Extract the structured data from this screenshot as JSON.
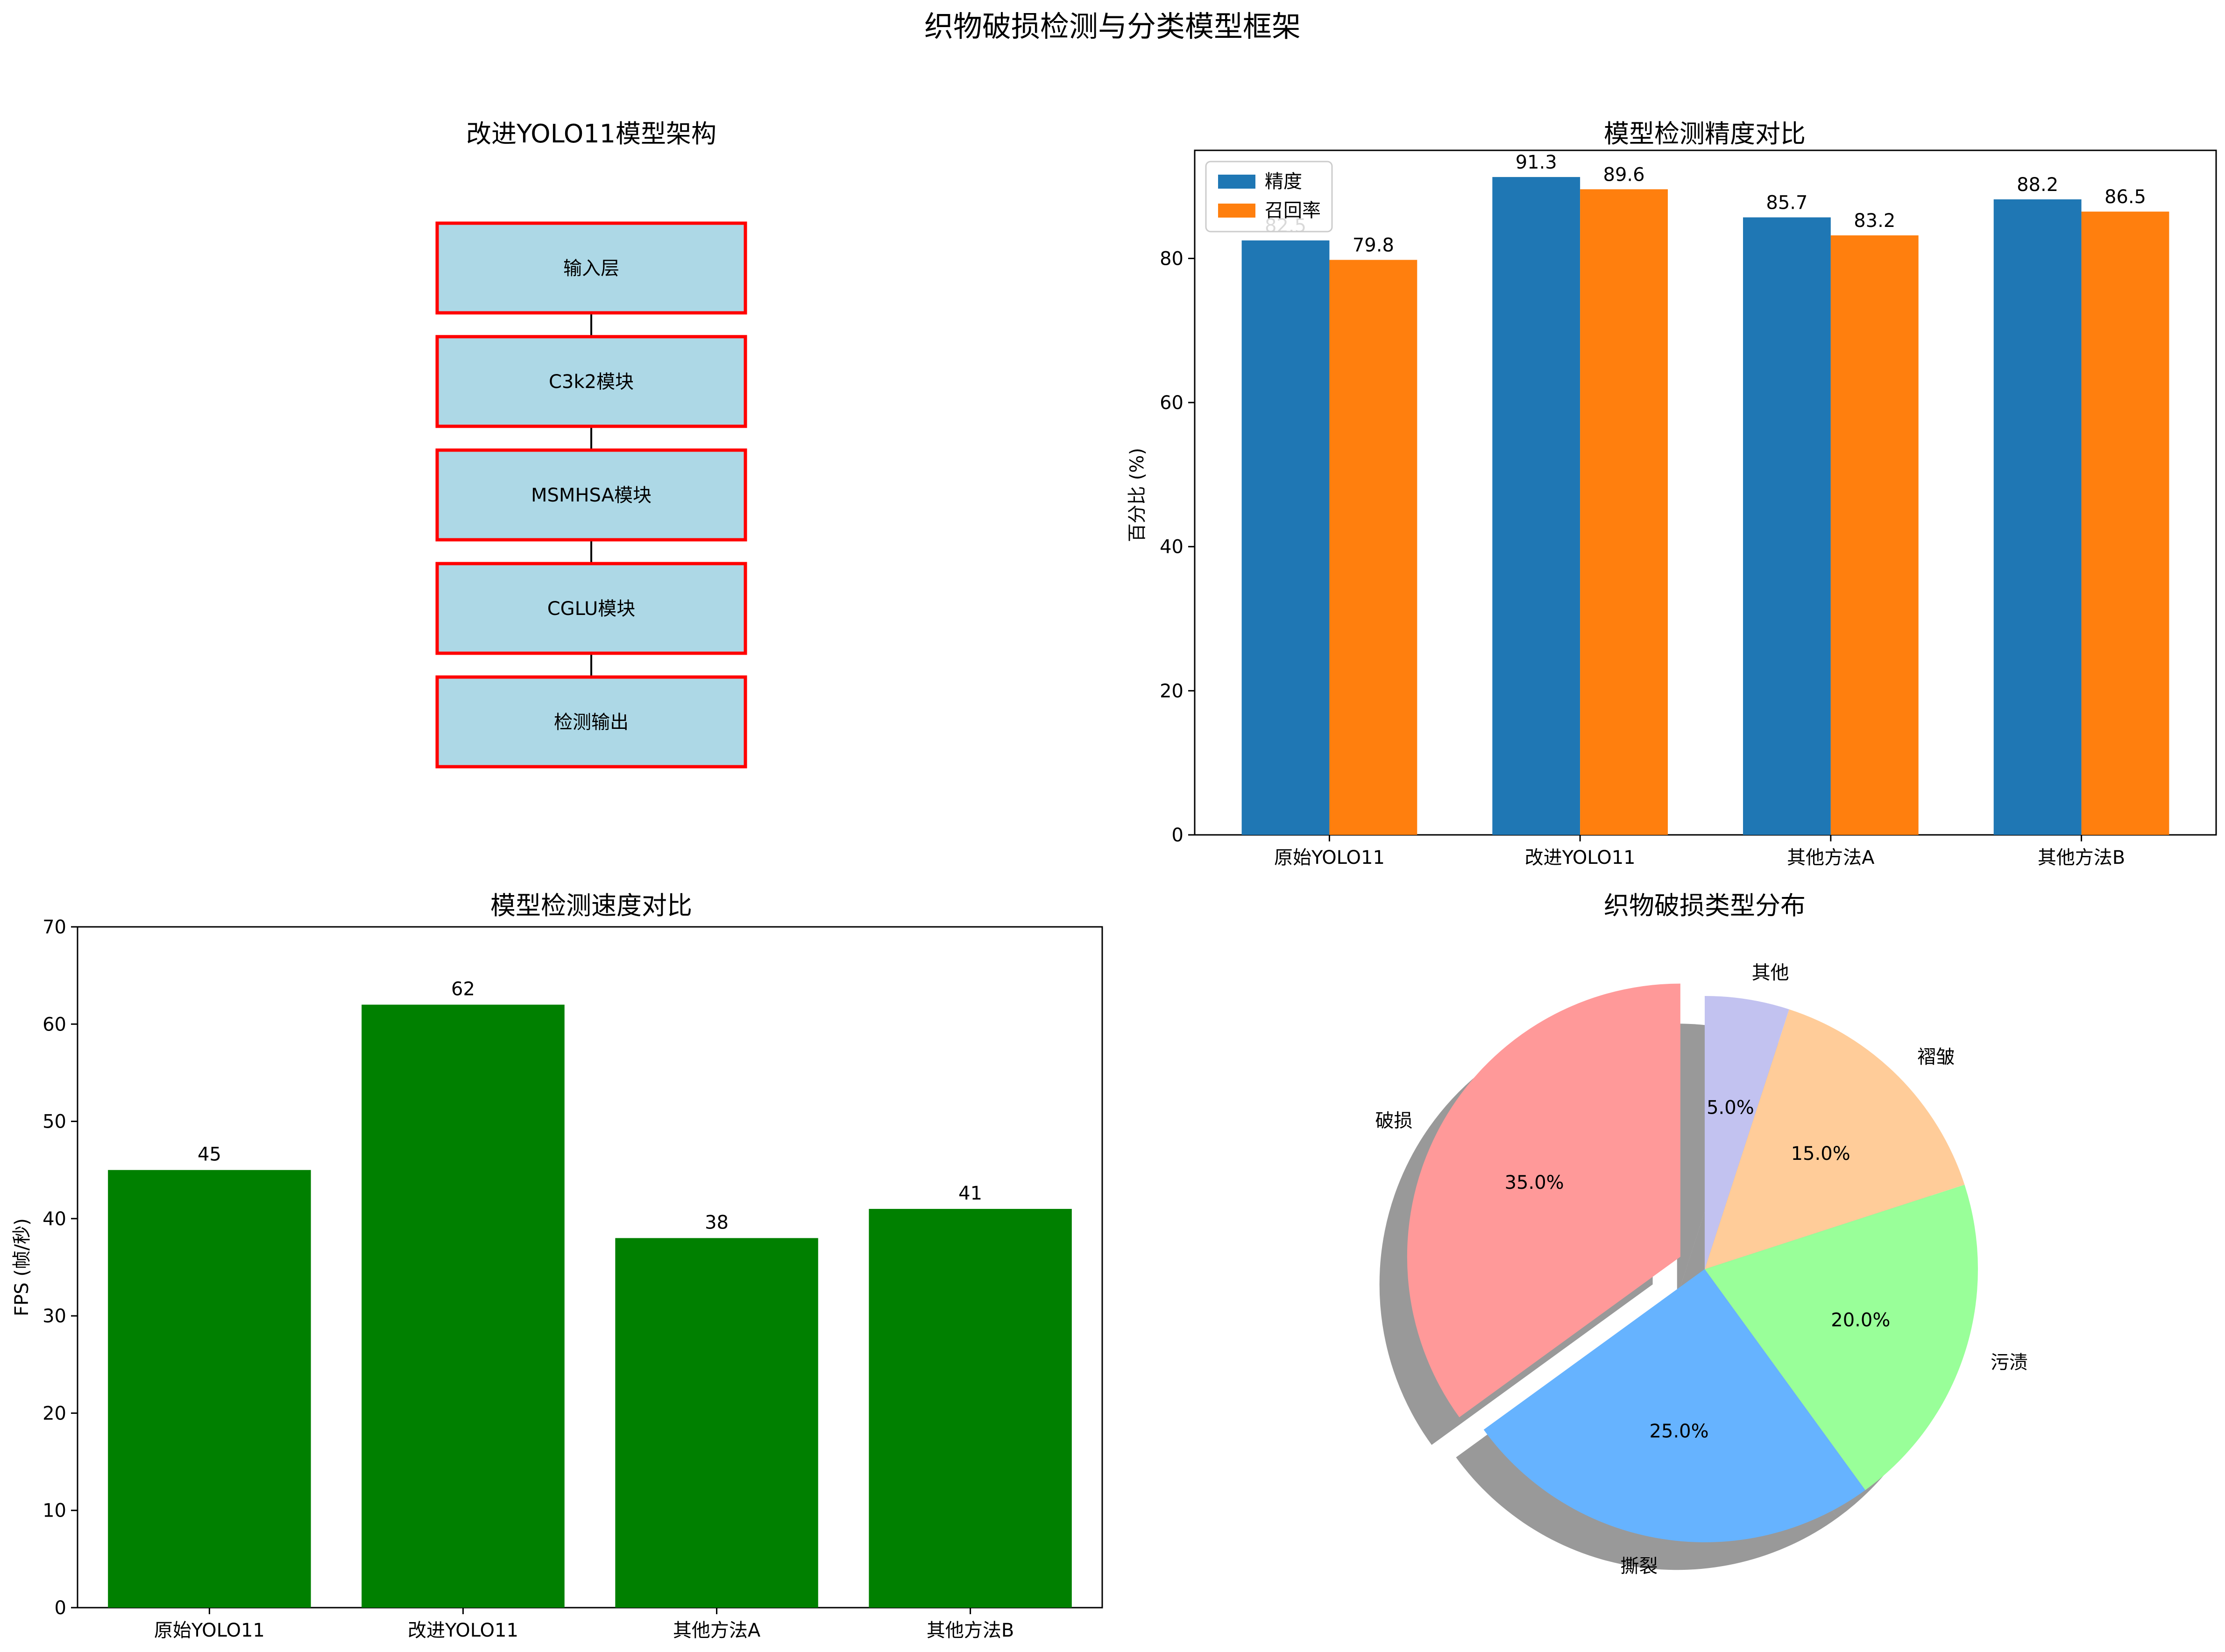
{
  "figure": {
    "title": "织物破损检测与分类模型框架"
  },
  "flowchart": {
    "title": "改进YOLO11模型架构",
    "nodes": [
      "输入层",
      "C3k2模块",
      "MSMHSA模块",
      "CGLU模块",
      "检测输出"
    ],
    "node_fill": "#add8e6",
    "node_border": "#ff0000"
  },
  "chart_data": [
    {
      "type": "bar",
      "title": "模型检测精度对比",
      "categories": [
        "原始YOLO11",
        "改进YOLO11",
        "其他方法A",
        "其他方法B"
      ],
      "series": [
        {
          "name": "精度",
          "values": [
            82.5,
            91.3,
            85.7,
            88.2
          ],
          "color": "#1f77b4"
        },
        {
          "name": "召回率",
          "values": [
            79.8,
            89.6,
            83.2,
            86.5
          ],
          "color": "#ff7f0e"
        }
      ],
      "xlabel": "",
      "ylabel": "百分比 (%)",
      "ylim": [
        0,
        95
      ],
      "yticks": [
        0,
        20,
        40,
        60,
        80
      ],
      "legend": "upper-left",
      "grid": false
    },
    {
      "type": "bar",
      "title": "模型检测速度对比",
      "categories": [
        "原始YOLO11",
        "改进YOLO11",
        "其他方法A",
        "其他方法B"
      ],
      "values": [
        45,
        62,
        38,
        41
      ],
      "color": "#008000",
      "xlabel": "",
      "ylabel": "FPS (帧/秒)",
      "ylim": [
        0,
        70
      ],
      "yticks": [
        0,
        10,
        20,
        30,
        40,
        50,
        60,
        70
      ],
      "grid": false
    },
    {
      "type": "pie",
      "title": "织物破损类型分布",
      "labels": [
        "破损",
        "撕裂",
        "污渍",
        "褶皱",
        "其他"
      ],
      "values": [
        35,
        25,
        20,
        15,
        5
      ],
      "value_labels": [
        "35.0%",
        "25.0%",
        "20.0%",
        "15.0%",
        "5.0%"
      ],
      "colors": [
        "#ff9999",
        "#66b3ff",
        "#99ff99",
        "#ffcc99",
        "#c2c2f0"
      ],
      "explode": [
        0.1,
        0,
        0,
        0,
        0
      ],
      "start_angle": 90,
      "shadow": true
    }
  ]
}
